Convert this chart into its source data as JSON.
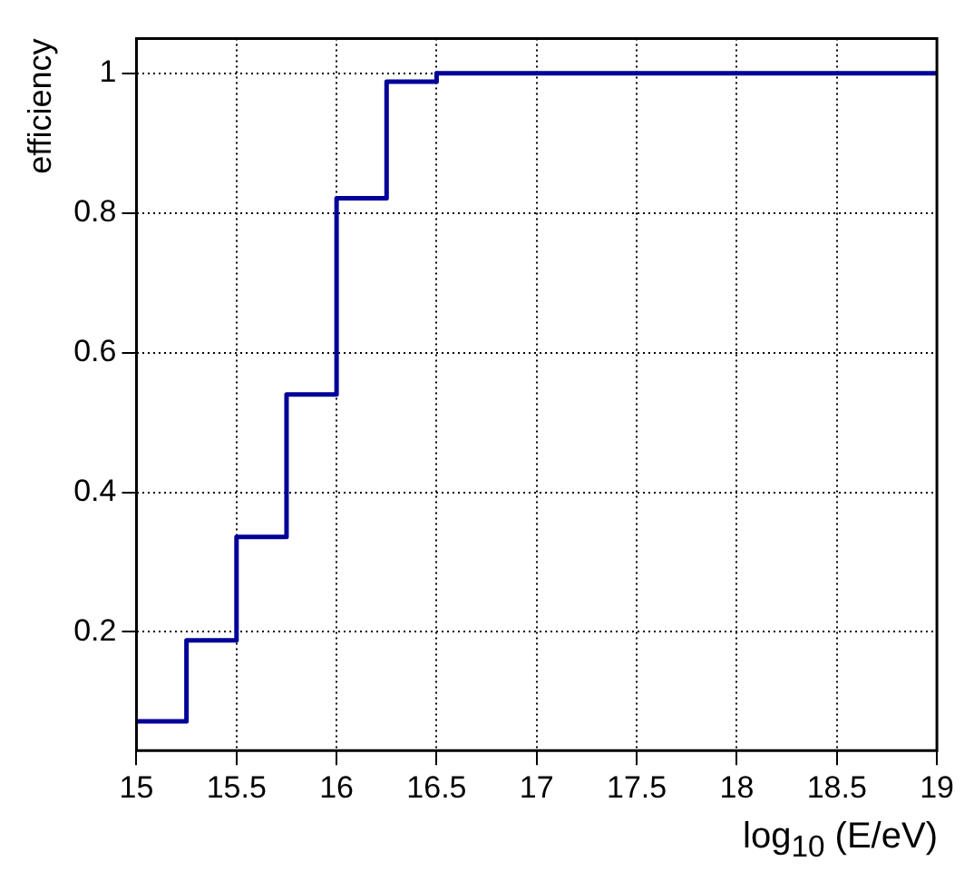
{
  "chart_data": {
    "type": "histogram",
    "xlabel": "log$_{10}$ (E/eV)",
    "ylabel": "efficiency",
    "bins": [
      15,
      15.25,
      15.5,
      15.75,
      16,
      16.25,
      16.5,
      16.75,
      17,
      17.25,
      17.5,
      17.75,
      18,
      18.25,
      18.5,
      18.75,
      19
    ],
    "values": [
      0.072,
      0.188,
      0.336,
      0.54,
      0.821,
      0.988,
      1,
      1,
      1,
      1,
      1,
      1,
      1,
      1,
      1,
      1
    ],
    "color": "#000099",
    "xlim": [
      15,
      19
    ],
    "ylim": [
      0.03,
      1.05
    ],
    "xticks": [
      15,
      15.5,
      16,
      16.5,
      17,
      17.5,
      18,
      18.5,
      19
    ],
    "yticks": [
      0.2,
      0.4,
      0.6,
      0.8,
      1
    ],
    "grid": true,
    "line_style": "solid"
  }
}
